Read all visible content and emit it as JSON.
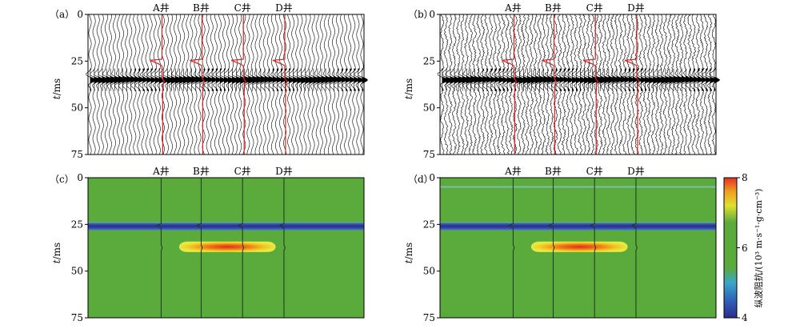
{
  "chart_data": [
    {
      "type": "seismic-wiggle",
      "panel_label": "（a）",
      "wells": [
        "A井",
        "B井",
        "C井",
        "D井"
      ],
      "ylabel_italic": "t",
      "ylabel_unit": "/ms",
      "yticks": [
        0,
        25,
        50,
        75
      ],
      "ylim": [
        0,
        75
      ],
      "event_time_ms": 35,
      "noisy": false
    },
    {
      "type": "seismic-wiggle",
      "panel_label": "（b）",
      "wells": [
        "A井",
        "B井",
        "C井",
        "D井"
      ],
      "ylabel_italic": "t",
      "ylabel_unit": "/ms",
      "yticks": [
        0,
        25,
        50,
        75
      ],
      "ylim": [
        0,
        75
      ],
      "event_time_ms": 35,
      "noisy": true
    },
    {
      "type": "heatmap",
      "panel_label": "（c）",
      "wells": [
        "A井",
        "B井",
        "C井",
        "D井"
      ],
      "ylabel_italic": "t",
      "ylabel_unit": "/ms",
      "yticks": [
        0,
        25,
        50,
        75
      ],
      "ylim": [
        0,
        75
      ],
      "background_impedance": 6,
      "low_layer": {
        "time_ms": 26,
        "value": 4
      },
      "high_anomaly": {
        "time_ms": 37,
        "value": 8
      },
      "shallow_artifact": false
    },
    {
      "type": "heatmap",
      "panel_label": "（d）",
      "wells": [
        "A井",
        "B井",
        "C井",
        "D井"
      ],
      "ylabel_italic": "t",
      "ylabel_unit": "/ms",
      "yticks": [
        0,
        25,
        50,
        75
      ],
      "ylim": [
        0,
        75
      ],
      "background_impedance": 6,
      "low_layer": {
        "time_ms": 26,
        "value": 4
      },
      "high_anomaly": {
        "time_ms": 37,
        "value": 8
      },
      "shallow_artifact": true
    }
  ],
  "colorbar": {
    "label": "纵波阻抗/(10³ m·s⁻¹·g·cm⁻³)",
    "ticks": [
      4,
      6,
      8
    ],
    "range": [
      4,
      8
    ],
    "colors": [
      "#2b2d8c",
      "#2f60b8",
      "#3aa6c8",
      "#5aaa3c",
      "#5aaa3c",
      "#e0e030",
      "#f0a020",
      "#e43020"
    ]
  },
  "colors": {
    "well_log": "#e02020",
    "trace": "#000000",
    "background": "#5aaa3c",
    "low_layer": "#2b2d8c",
    "well_line_dark": "#1a3a1a"
  }
}
